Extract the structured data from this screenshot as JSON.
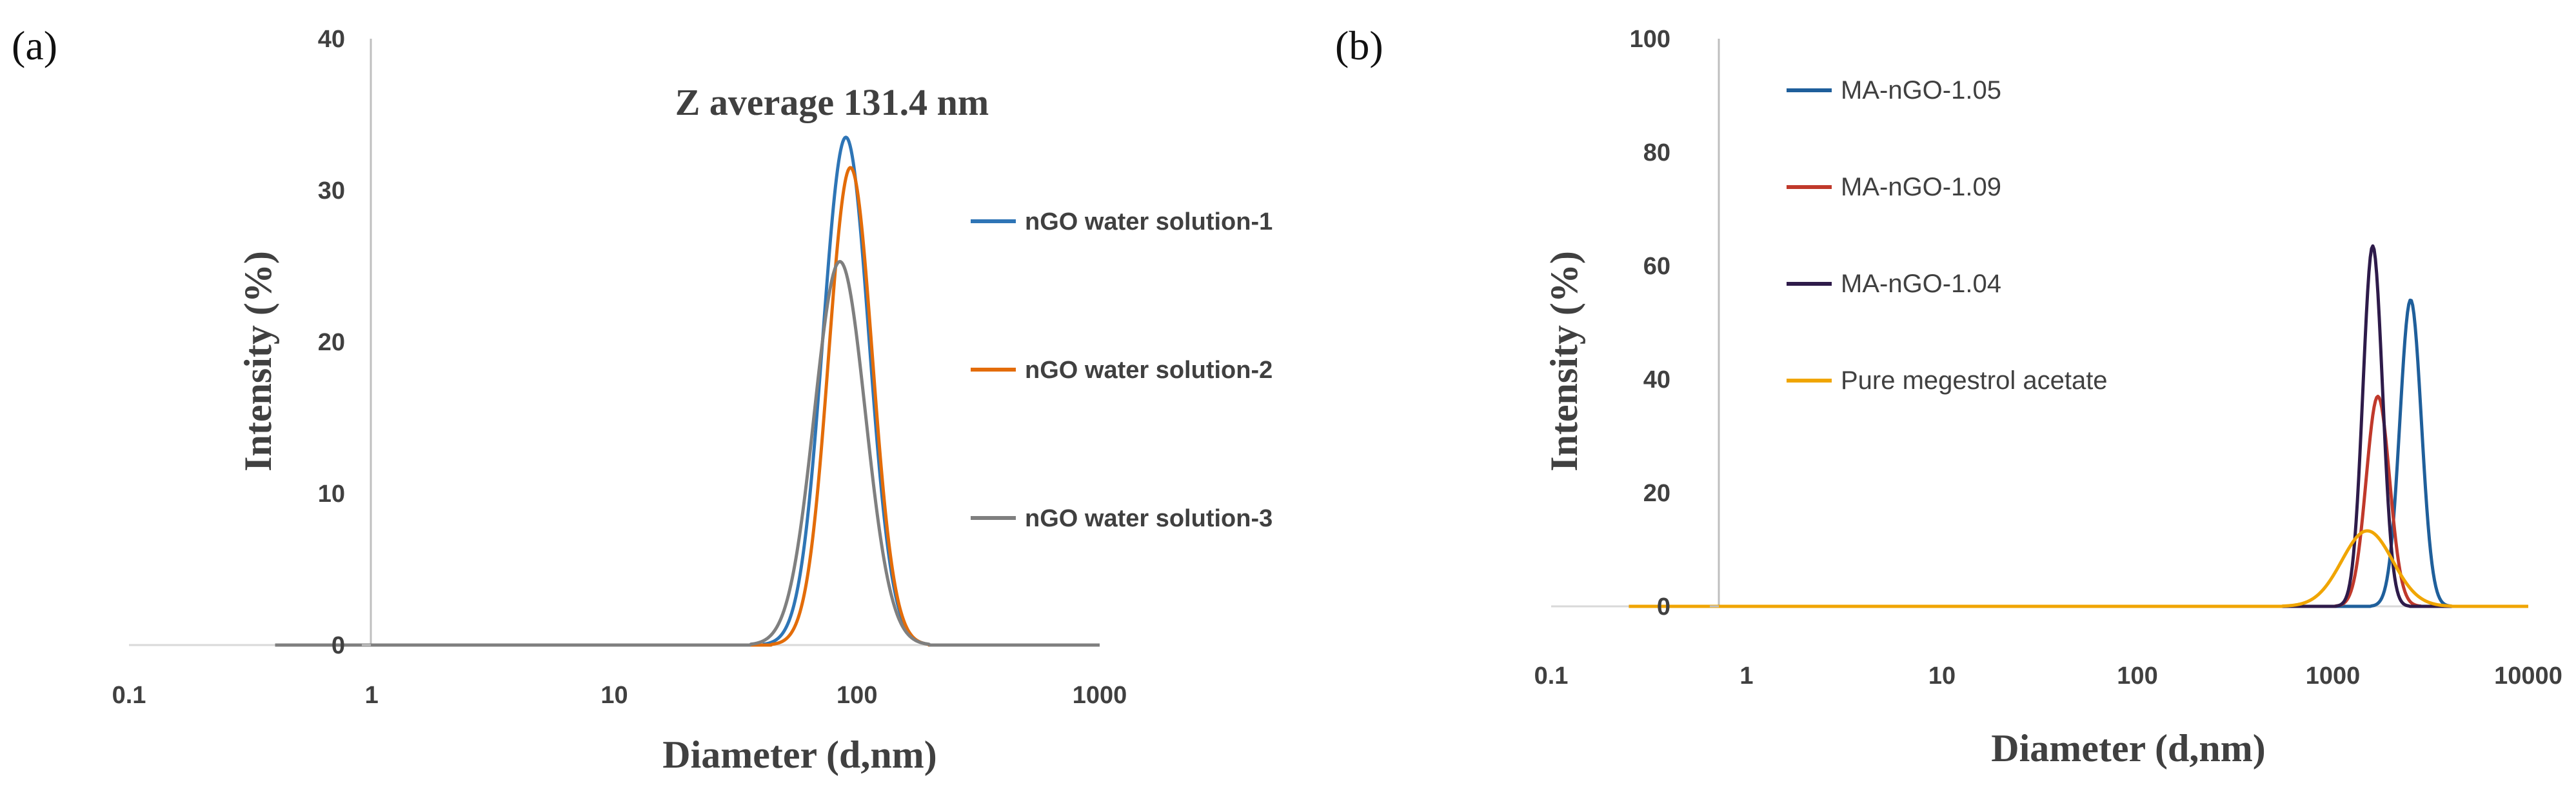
{
  "chart_data": [
    {
      "panel": "(a)",
      "type": "line",
      "xscale": "log",
      "xlabel": "Diameter (d,nm)",
      "ylabel": "Intensity (%)",
      "xlim": [
        0.1,
        1000
      ],
      "ylim": [
        0,
        40
      ],
      "x_ticks": [
        "0.1",
        "1",
        "10",
        "100",
        "1000"
      ],
      "y_ticks": [
        "0",
        "10",
        "20",
        "30",
        "40"
      ],
      "annotation": "Z average 131.4 nm",
      "legend_position": "right",
      "series": [
        {
          "name": "nGO water solution-1",
          "color": "#2E75B6",
          "peak_x": 90,
          "peak_y": 33.5,
          "sigma_log10": 0.095,
          "x_start": 1,
          "x_end": 1000
        },
        {
          "name": "nGO water solution-2",
          "color": "#E36C09",
          "peak_x": 94,
          "peak_y": 31.5,
          "sigma_log10": 0.09,
          "x_start": 1,
          "x_end": 1000
        },
        {
          "name": "nGO water solution-3",
          "color": "#7F7F7F",
          "peak_x": 85,
          "peak_y": 25.3,
          "sigma_log10": 0.105,
          "x_start": 0.4,
          "x_end": 1000
        }
      ]
    },
    {
      "panel": "(b)",
      "type": "line",
      "xscale": "log",
      "xlabel": "Diameter (d,nm)",
      "ylabel": "Intensity (%)",
      "xlim": [
        0.1,
        10000
      ],
      "ylim": [
        0,
        100
      ],
      "x_ticks": [
        "0.1",
        "1",
        "10",
        "100",
        "1000",
        "10000"
      ],
      "y_ticks": [
        "0",
        "20",
        "40",
        "60",
        "80",
        "100"
      ],
      "legend_position": "top-left",
      "series": [
        {
          "name": "MA-nGO-1.05",
          "color": "#1F5F9B",
          "peak_x": 2500,
          "peak_y": 54,
          "sigma_log10": 0.055,
          "x_start": 0.25,
          "x_end": 10000
        },
        {
          "name": "MA-nGO-1.09",
          "color": "#C0392B",
          "peak_x": 1700,
          "peak_y": 37,
          "sigma_log10": 0.06,
          "x_start": 0.25,
          "x_end": 10000
        },
        {
          "name": "MA-nGO-1.04",
          "color": "#2E1B4A",
          "peak_x": 1600,
          "peak_y": 63.5,
          "sigma_log10": 0.05,
          "x_start": 0.25,
          "x_end": 10000
        },
        {
          "name": "Pure megestrol acetate",
          "color": "#F0A500",
          "peak_x": 1500,
          "peak_y": 13.3,
          "sigma_log10": 0.13,
          "x_start": 0.25,
          "x_end": 10000
        }
      ]
    }
  ]
}
